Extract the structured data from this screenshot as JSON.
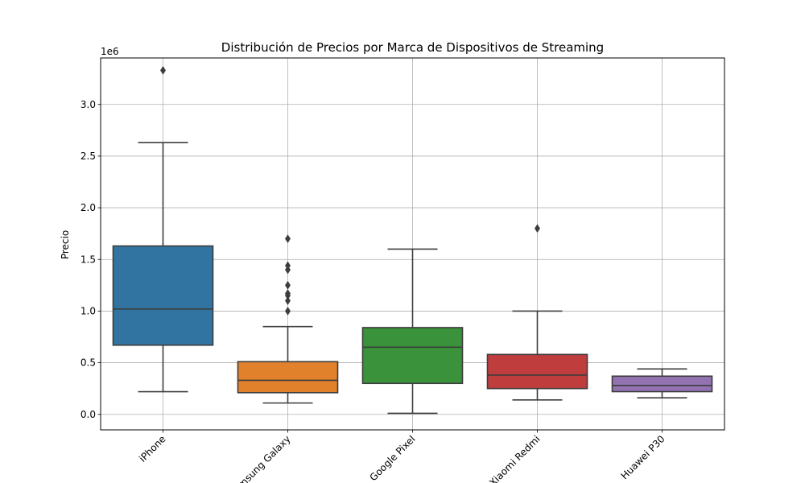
{
  "chart_data": {
    "type": "box",
    "title": "Distribución de Precios por Marca de Dispositivos de Streaming",
    "xlabel": "",
    "ylabel": "Precio",
    "y_offset_label": "1e6",
    "y_scale": 1000000,
    "ylim": [
      -150000,
      3450000
    ],
    "yticks": [
      0,
      500000,
      1000000,
      1500000,
      2000000,
      2500000,
      3000000
    ],
    "ytick_labels": [
      "0.0",
      "0.5",
      "1.0",
      "1.5",
      "2.0",
      "2.5",
      "3.0"
    ],
    "grid": true,
    "x_tick_rotation": 45,
    "categories": [
      "iPhone",
      "Samsung Galaxy",
      "Google Pixel",
      "Xiaomi Redmi",
      "Huawei P30"
    ],
    "boxes": [
      {
        "category": "iPhone",
        "color": "#3274a1",
        "whislo": 220000,
        "q1": 670000,
        "median": 1020000,
        "q3": 1630000,
        "whishi": 2630000,
        "fliers": [
          3330000
        ]
      },
      {
        "category": "Samsung Galaxy",
        "color": "#e1812c",
        "whislo": 110000,
        "q1": 210000,
        "median": 330000,
        "q3": 510000,
        "whishi": 850000,
        "fliers": [
          1000000,
          1100000,
          1150000,
          1170000,
          1250000,
          1400000,
          1440000,
          1700000
        ]
      },
      {
        "category": "Google Pixel",
        "color": "#3a923a",
        "whislo": 10000,
        "q1": 300000,
        "median": 650000,
        "q3": 840000,
        "whishi": 1600000,
        "fliers": []
      },
      {
        "category": "Xiaomi Redmi",
        "color": "#c03d3e",
        "whislo": 140000,
        "q1": 250000,
        "median": 380000,
        "q3": 580000,
        "whishi": 1000000,
        "fliers": [
          1800000
        ]
      },
      {
        "category": "Huawei P30",
        "color": "#9372b2",
        "whislo": 160000,
        "q1": 220000,
        "median": 280000,
        "q3": 370000,
        "whishi": 440000,
        "fliers": []
      }
    ]
  }
}
